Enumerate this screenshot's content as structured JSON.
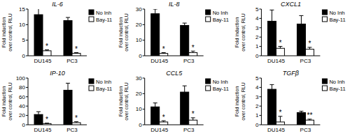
{
  "chart_data": [
    {
      "type": "bar",
      "title": "IL-6",
      "ylabel": "Fold induction over control, RLU",
      "categories": [
        "DU145",
        "PC3"
      ],
      "series": [
        {
          "name": "No Inh",
          "color": "#000000",
          "values": [
            13.2,
            11.3
          ],
          "errors": [
            2.7,
            1.0
          ]
        },
        {
          "name": "Bay-11",
          "color": "#ffffff",
          "values": [
            1.6,
            0.8
          ],
          "errors": [
            0.3,
            0.2
          ],
          "significance": [
            "*",
            "*"
          ]
        }
      ],
      "ylim": [
        0,
        15
      ],
      "yticks": [
        0,
        5,
        10,
        15
      ],
      "legend": "upper right"
    },
    {
      "type": "bar",
      "title": "IL-8",
      "ylabel": "Fold induction over control, RLU",
      "categories": [
        "DU145",
        "PC3"
      ],
      "series": [
        {
          "name": "No Inh",
          "color": "#000000",
          "values": [
            27,
            19.5
          ],
          "errors": [
            3,
            1.5
          ]
        },
        {
          "name": "Bay-11",
          "color": "#ffffff",
          "values": [
            1.5,
            2
          ],
          "errors": [
            0.5,
            1
          ],
          "significance": [
            "*",
            "*"
          ]
        }
      ],
      "ylim": [
        0,
        30
      ],
      "yticks": [
        0,
        10,
        20,
        30
      ],
      "legend": "upper right"
    },
    {
      "type": "bar",
      "title": "CXCL1",
      "ylabel": "Fold induction over control, RLU",
      "categories": [
        "DU145",
        "PC3"
      ],
      "series": [
        {
          "name": "No Inh",
          "color": "#000000",
          "values": [
            3.7,
            3.4
          ],
          "errors": [
            1.2,
            0.9
          ]
        },
        {
          "name": "Bay-11",
          "color": "#ffffff",
          "values": [
            0.8,
            0.7
          ],
          "errors": [
            0.2,
            0.2
          ],
          "significance": [
            "*",
            "*"
          ]
        }
      ],
      "ylim": [
        0,
        5
      ],
      "yticks": [
        0,
        1,
        2,
        3,
        4,
        5
      ],
      "legend": "upper right"
    },
    {
      "type": "bar",
      "title": "IP-10",
      "ylabel": "Fold induction over control, RLU",
      "categories": [
        "DU145",
        "PC3"
      ],
      "series": [
        {
          "name": "No Inh",
          "color": "#000000",
          "values": [
            22,
            74
          ],
          "errors": [
            6,
            15
          ]
        },
        {
          "name": "Bay-11",
          "color": "#ffffff",
          "values": [
            2.5,
            4.5
          ],
          "errors": [
            1,
            2
          ],
          "significance": [
            "*",
            "*"
          ]
        }
      ],
      "ylim": [
        0,
        100
      ],
      "yticks": [
        0,
        20,
        40,
        60,
        80,
        100
      ],
      "legend": "upper right"
    },
    {
      "type": "bar",
      "title": "CCL5",
      "ylabel": "Fold induction over control, RLU",
      "categories": [
        "DU145",
        "PC3"
      ],
      "series": [
        {
          "name": "No Inh",
          "color": "#000000",
          "values": [
            11.5,
            21
          ],
          "errors": [
            2.5,
            4
          ]
        },
        {
          "name": "Bay-11",
          "color": "#ffffff",
          "values": [
            1.8,
            3
          ],
          "errors": [
            0.8,
            1.5
          ],
          "significance": [
            "*",
            "*"
          ]
        }
      ],
      "ylim": [
        0,
        30
      ],
      "yticks": [
        0,
        10,
        20,
        30
      ],
      "legend": "upper right"
    },
    {
      "type": "bar",
      "title": "TGFβ",
      "ylabel": "Fold induction over control, RLU",
      "categories": [
        "DU145",
        "PC3"
      ],
      "series": [
        {
          "name": "No Inh",
          "color": "#000000",
          "values": [
            3.8,
            1.3
          ],
          "errors": [
            0.5,
            0.15
          ]
        },
        {
          "name": "Bay-11",
          "color": "#ffffff",
          "values": [
            0.3,
            0.5
          ],
          "errors": [
            0.6,
            0.1
          ],
          "significance": [
            "*",
            "**"
          ]
        }
      ],
      "ylim": [
        0,
        5
      ],
      "yticks": [
        0,
        1,
        2,
        3,
        4,
        5
      ],
      "legend": "upper right"
    }
  ]
}
